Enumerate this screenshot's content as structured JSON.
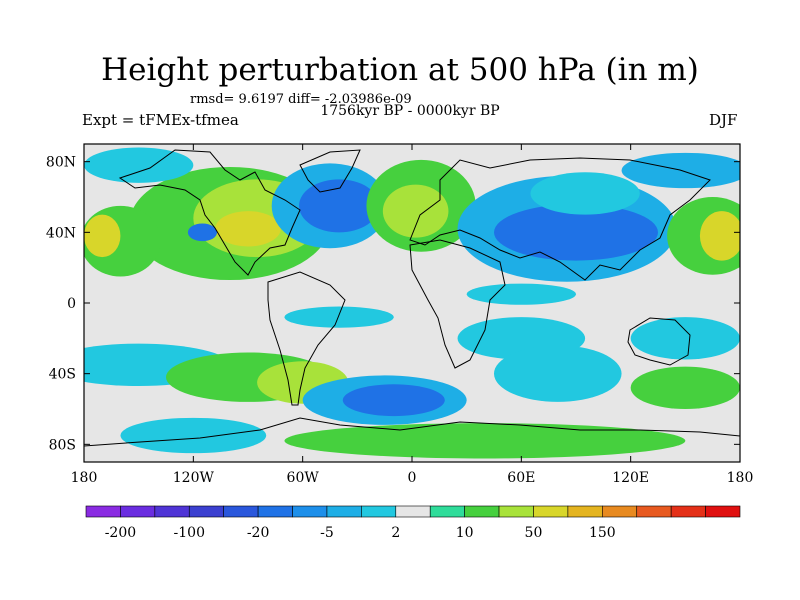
{
  "chart_data": {
    "type": "heatmap",
    "title": "Height perturbation at 500 hPa (in m)",
    "stats_text": "rmsd= 9.6197 diff= -2.03986e-09",
    "period": "1756kyr BP - 0000kyr BP",
    "left_label": "Expt = tFMEx-tfmea",
    "right_label": "DJF",
    "xlim": [
      -180,
      180
    ],
    "ylim": [
      -90,
      90
    ],
    "x_ticks": [
      {
        "value": -180,
        "label": "180"
      },
      {
        "value": -120,
        "label": "120W"
      },
      {
        "value": -60,
        "label": "60W"
      },
      {
        "value": 0,
        "label": "0"
      },
      {
        "value": 60,
        "label": "60E"
      },
      {
        "value": 120,
        "label": "120E"
      },
      {
        "value": 180,
        "label": "180"
      }
    ],
    "y_ticks": [
      {
        "value": 80,
        "label": "80N"
      },
      {
        "value": 40,
        "label": "40N"
      },
      {
        "value": 0,
        "label": "0"
      },
      {
        "value": -40,
        "label": "40S"
      },
      {
        "value": -80,
        "label": "80S"
      }
    ],
    "colorbar": {
      "colors": [
        "#8a2be2",
        "#6a2de0",
        "#4f34d6",
        "#3b40d0",
        "#2a57dc",
        "#1f72e6",
        "#1d8fea",
        "#1eaee6",
        "#22c8e0",
        "#e6e6e6",
        "#2fdc9a",
        "#46d03e",
        "#a8e23a",
        "#d8d62a",
        "#e4b420",
        "#e88a20",
        "#e85a20",
        "#e43018",
        "#e01010"
      ],
      "labels": [
        "-200",
        "-100",
        "-20",
        "-5",
        "2",
        "10",
        "50",
        "150"
      ],
      "label_boundaries": [
        1,
        3,
        5,
        7,
        9,
        11,
        13,
        15
      ]
    },
    "field_blobs": [
      {
        "lon": -100,
        "lat": 45,
        "rx": 55,
        "ry": 32,
        "level": 11
      },
      {
        "lon": -85,
        "lat": 48,
        "rx": 35,
        "ry": 22,
        "level": 12
      },
      {
        "lon": -90,
        "lat": 42,
        "rx": 18,
        "ry": 10,
        "level": 13
      },
      {
        "lon": -160,
        "lat": 35,
        "rx": 22,
        "ry": 20,
        "level": 11
      },
      {
        "lon": -170,
        "lat": 38,
        "rx": 10,
        "ry": 12,
        "level": 13
      },
      {
        "lon": -115,
        "lat": 40,
        "rx": 8,
        "ry": 5,
        "level": 5
      },
      {
        "lon": -45,
        "lat": 55,
        "rx": 32,
        "ry": 24,
        "level": 7
      },
      {
        "lon": -40,
        "lat": 55,
        "rx": 22,
        "ry": 15,
        "level": 5
      },
      {
        "lon": 5,
        "lat": 55,
        "rx": 30,
        "ry": 26,
        "level": 11
      },
      {
        "lon": 2,
        "lat": 52,
        "rx": 18,
        "ry": 15,
        "level": 12
      },
      {
        "lon": 85,
        "lat": 42,
        "rx": 60,
        "ry": 30,
        "level": 7
      },
      {
        "lon": 90,
        "lat": 40,
        "rx": 45,
        "ry": 16,
        "level": 5
      },
      {
        "lon": 95,
        "lat": 62,
        "rx": 30,
        "ry": 12,
        "level": 8
      },
      {
        "lon": 165,
        "lat": 38,
        "rx": 25,
        "ry": 22,
        "level": 11
      },
      {
        "lon": 170,
        "lat": 38,
        "rx": 12,
        "ry": 14,
        "level": 13
      },
      {
        "lon": 150,
        "lat": 75,
        "rx": 35,
        "ry": 10,
        "level": 7
      },
      {
        "lon": -150,
        "lat": 78,
        "rx": 30,
        "ry": 10,
        "level": 8
      },
      {
        "lon": -150,
        "lat": -35,
        "rx": 50,
        "ry": 12,
        "level": 8
      },
      {
        "lon": -90,
        "lat": -42,
        "rx": 45,
        "ry": 14,
        "level": 11
      },
      {
        "lon": -60,
        "lat": -45,
        "rx": 25,
        "ry": 12,
        "level": 12
      },
      {
        "lon": -15,
        "lat": -55,
        "rx": 45,
        "ry": 14,
        "level": 7
      },
      {
        "lon": -10,
        "lat": -55,
        "rx": 28,
        "ry": 9,
        "level": 5
      },
      {
        "lon": 60,
        "lat": -20,
        "rx": 35,
        "ry": 12,
        "level": 8
      },
      {
        "lon": 80,
        "lat": -40,
        "rx": 35,
        "ry": 16,
        "level": 8
      },
      {
        "lon": 150,
        "lat": -20,
        "rx": 30,
        "ry": 12,
        "level": 8
      },
      {
        "lon": 150,
        "lat": -48,
        "rx": 30,
        "ry": 12,
        "level": 11
      },
      {
        "lon": 40,
        "lat": -78,
        "rx": 110,
        "ry": 10,
        "level": 11
      },
      {
        "lon": -120,
        "lat": -75,
        "rx": 40,
        "ry": 10,
        "level": 8
      },
      {
        "lon": 60,
        "lat": 5,
        "rx": 30,
        "ry": 6,
        "level": 8
      },
      {
        "lon": -40,
        "lat": -8,
        "rx": 30,
        "ry": 6,
        "level": 8
      }
    ]
  }
}
